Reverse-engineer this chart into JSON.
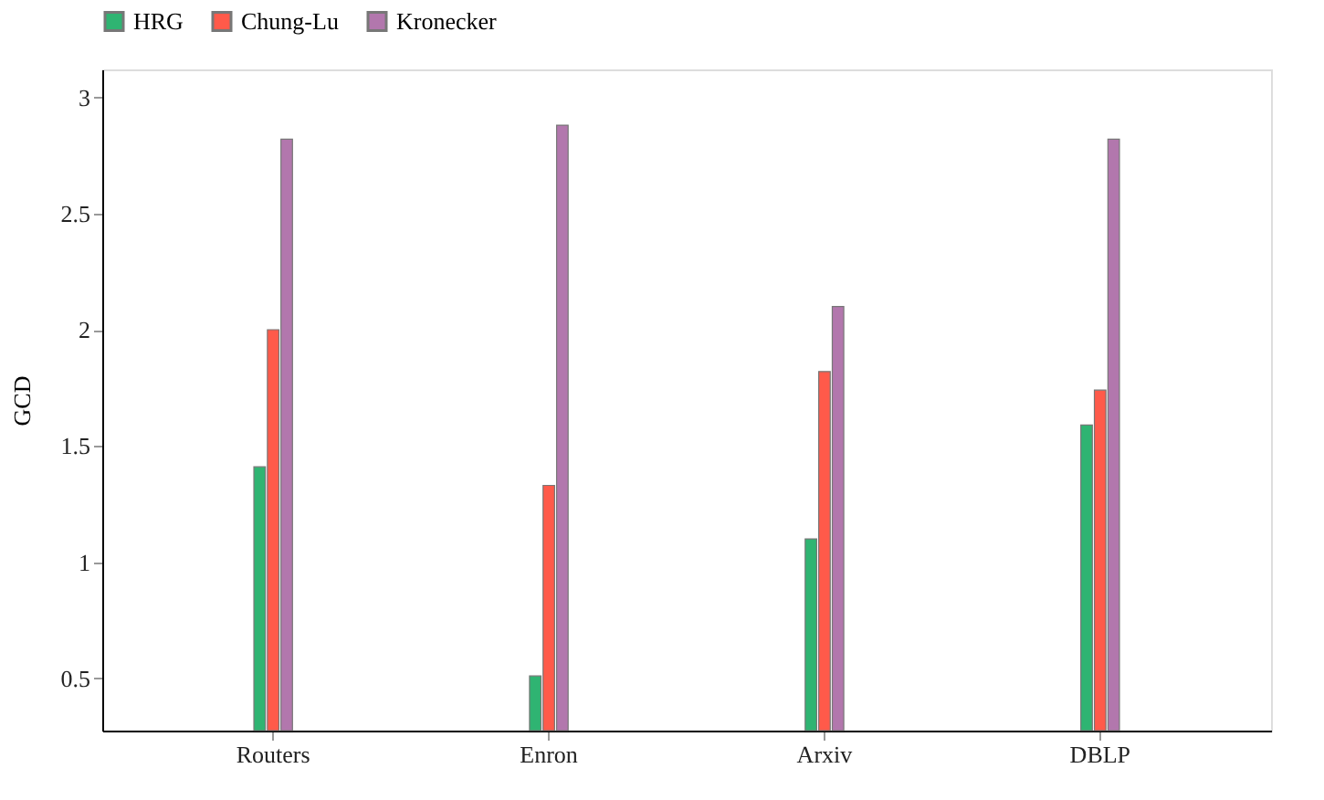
{
  "chart_data": {
    "type": "bar",
    "ylabel": "GCD",
    "categories": [
      "Routers",
      "Enron",
      "Arxiv",
      "DBLP"
    ],
    "series": [
      {
        "name": "HRG",
        "color": "#2fb472",
        "values": [
          1.41,
          0.51,
          1.1,
          1.59
        ]
      },
      {
        "name": "Chung-Lu",
        "color": "#ff5a4a",
        "values": [
          2.0,
          1.33,
          1.82,
          1.74
        ]
      },
      {
        "name": "Kronecker",
        "color": "#b277ad",
        "values": [
          2.82,
          2.88,
          2.1,
          2.82
        ]
      }
    ],
    "ylim": [
      0.275,
      3.12
    ],
    "yticks": [
      0.5,
      1,
      1.5,
      2,
      2.5,
      3
    ],
    "grid": false,
    "legend": "top"
  }
}
